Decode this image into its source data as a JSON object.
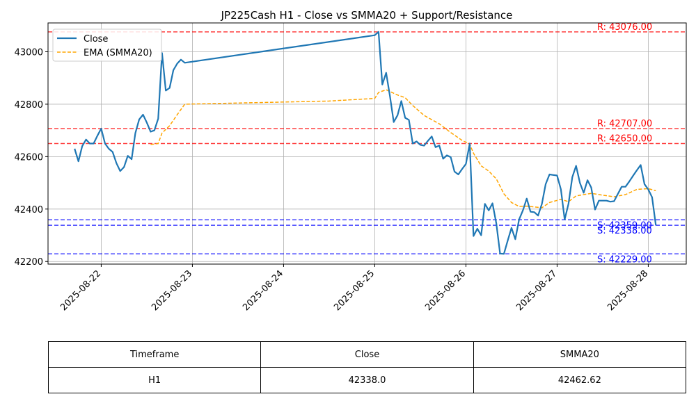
{
  "chart_data": {
    "type": "line",
    "title": "JP225Cash H1 - Close vs SMMA20 + Support/Resistance",
    "xlabel": "",
    "ylabel": "",
    "ylim": [
      42190,
      43110
    ],
    "xlim": [
      "2025-08-21 10:00",
      "2025-08-28 10:00"
    ],
    "x_ticks": [
      "2025-08-22",
      "2025-08-23",
      "2025-08-24",
      "2025-08-25",
      "2025-08-26",
      "2025-08-27",
      "2025-08-28"
    ],
    "y_ticks": [
      42200,
      42400,
      42600,
      42800,
      43000
    ],
    "grid": true,
    "legend_position": "top-left",
    "series": [
      {
        "name": "Close",
        "color": "#1f77b4",
        "style": "solid",
        "points": [
          [
            "2025-08-21 17:00",
            42630
          ],
          [
            "2025-08-21 18:00",
            42582
          ],
          [
            "2025-08-21 19:00",
            42640
          ],
          [
            "2025-08-21 20:00",
            42665
          ],
          [
            "2025-08-21 21:00",
            42650
          ],
          [
            "2025-08-21 22:00",
            42650
          ],
          [
            "2025-08-21 23:00",
            42680
          ],
          [
            "2025-08-22 00:00",
            42707
          ],
          [
            "2025-08-22 01:00",
            42650
          ],
          [
            "2025-08-22 02:00",
            42630
          ],
          [
            "2025-08-22 03:00",
            42618
          ],
          [
            "2025-08-22 04:00",
            42575
          ],
          [
            "2025-08-22 05:00",
            42545
          ],
          [
            "2025-08-22 06:00",
            42560
          ],
          [
            "2025-08-22 07:00",
            42603
          ],
          [
            "2025-08-22 08:00",
            42590
          ],
          [
            "2025-08-22 09:00",
            42690
          ],
          [
            "2025-08-22 10:00",
            42742
          ],
          [
            "2025-08-22 11:00",
            42760
          ],
          [
            "2025-08-22 12:00",
            42730
          ],
          [
            "2025-08-22 13:00",
            42695
          ],
          [
            "2025-08-22 14:00",
            42700
          ],
          [
            "2025-08-22 15:00",
            42745
          ],
          [
            "2025-08-22 16:00",
            42995
          ],
          [
            "2025-08-22 17:00",
            42852
          ],
          [
            "2025-08-22 18:00",
            42862
          ],
          [
            "2025-08-22 19:00",
            42930
          ],
          [
            "2025-08-22 20:00",
            42955
          ],
          [
            "2025-08-22 21:00",
            42970
          ],
          [
            "2025-08-22 22:00",
            42958
          ],
          [
            "2025-08-25 00:00",
            43063
          ],
          [
            "2025-08-25 01:00",
            43076
          ],
          [
            "2025-08-25 02:00",
            42875
          ],
          [
            "2025-08-25 03:00",
            42920
          ],
          [
            "2025-08-25 04:00",
            42830
          ],
          [
            "2025-08-25 05:00",
            42732
          ],
          [
            "2025-08-25 06:00",
            42758
          ],
          [
            "2025-08-25 07:00",
            42812
          ],
          [
            "2025-08-25 08:00",
            42748
          ],
          [
            "2025-08-25 09:00",
            42740
          ],
          [
            "2025-08-25 10:00",
            42650
          ],
          [
            "2025-08-25 11:00",
            42658
          ],
          [
            "2025-08-25 12:00",
            42645
          ],
          [
            "2025-08-25 13:00",
            42642
          ],
          [
            "2025-08-25 14:00",
            42660
          ],
          [
            "2025-08-25 15:00",
            42677
          ],
          [
            "2025-08-25 16:00",
            42636
          ],
          [
            "2025-08-25 17:00",
            42642
          ],
          [
            "2025-08-25 18:00",
            42592
          ],
          [
            "2025-08-25 19:00",
            42605
          ],
          [
            "2025-08-25 20:00",
            42598
          ],
          [
            "2025-08-25 21:00",
            42543
          ],
          [
            "2025-08-25 22:00",
            42532
          ],
          [
            "2025-08-25 23:00",
            42553
          ],
          [
            "2025-08-26 00:00",
            42572
          ],
          [
            "2025-08-26 01:00",
            42650
          ],
          [
            "2025-08-26 02:00",
            42297
          ],
          [
            "2025-08-26 03:00",
            42325
          ],
          [
            "2025-08-26 04:00",
            42300
          ],
          [
            "2025-08-26 05:00",
            42420
          ],
          [
            "2025-08-26 06:00",
            42395
          ],
          [
            "2025-08-26 07:00",
            42422
          ],
          [
            "2025-08-26 08:00",
            42345
          ],
          [
            "2025-08-26 09:00",
            42230
          ],
          [
            "2025-08-26 10:00",
            42229
          ],
          [
            "2025-08-26 11:00",
            42280
          ],
          [
            "2025-08-26 12:00",
            42328
          ],
          [
            "2025-08-26 13:00",
            42285
          ],
          [
            "2025-08-26 14:00",
            42360
          ],
          [
            "2025-08-26 15:00",
            42395
          ],
          [
            "2025-08-26 16:00",
            42440
          ],
          [
            "2025-08-26 17:00",
            42390
          ],
          [
            "2025-08-26 18:00",
            42388
          ],
          [
            "2025-08-26 19:00",
            42375
          ],
          [
            "2025-08-26 20:00",
            42420
          ],
          [
            "2025-08-26 21:00",
            42495
          ],
          [
            "2025-08-26 22:00",
            42532
          ],
          [
            "2025-08-26 23:00",
            42530
          ],
          [
            "2025-08-27 00:00",
            42528
          ],
          [
            "2025-08-27 01:00",
            42475
          ],
          [
            "2025-08-27 02:00",
            42360
          ],
          [
            "2025-08-27 03:00",
            42420
          ],
          [
            "2025-08-27 04:00",
            42522
          ],
          [
            "2025-08-27 05:00",
            42565
          ],
          [
            "2025-08-27 06:00",
            42500
          ],
          [
            "2025-08-27 07:00",
            42462
          ],
          [
            "2025-08-27 08:00",
            42510
          ],
          [
            "2025-08-27 09:00",
            42482
          ],
          [
            "2025-08-27 10:00",
            42398
          ],
          [
            "2025-08-27 11:00",
            42432
          ],
          [
            "2025-08-27 12:00",
            42432
          ],
          [
            "2025-08-27 13:00",
            42432
          ],
          [
            "2025-08-27 14:00",
            42428
          ],
          [
            "2025-08-27 15:00",
            42430
          ],
          [
            "2025-08-27 16:00",
            42458
          ],
          [
            "2025-08-27 17:00",
            42485
          ],
          [
            "2025-08-27 18:00",
            42485
          ],
          [
            "2025-08-27 19:00",
            42505
          ],
          [
            "2025-08-27 20:00",
            42527
          ],
          [
            "2025-08-27 21:00",
            42548
          ],
          [
            "2025-08-27 22:00",
            42568
          ],
          [
            "2025-08-27 23:00",
            42495
          ],
          [
            "2025-08-28 00:00",
            42475
          ],
          [
            "2025-08-28 01:00",
            42445
          ],
          [
            "2025-08-28 02:00",
            42338
          ]
        ]
      },
      {
        "name": "EMA (SMMA20)",
        "color": "#ffa500",
        "style": "dashed",
        "points": [
          [
            "2025-08-22 13:00",
            42646
          ],
          [
            "2025-08-22 15:00",
            42650
          ],
          [
            "2025-08-22 16:00",
            42690
          ],
          [
            "2025-08-22 18:00",
            42718
          ],
          [
            "2025-08-22 20:00",
            42760
          ],
          [
            "2025-08-22 22:00",
            42800
          ],
          [
            "2025-08-24 12:00",
            42812
          ],
          [
            "2025-08-25 00:00",
            42822
          ],
          [
            "2025-08-25 01:00",
            42845
          ],
          [
            "2025-08-25 03:00",
            42855
          ],
          [
            "2025-08-25 06:00",
            42835
          ],
          [
            "2025-08-25 08:00",
            42825
          ],
          [
            "2025-08-25 10:00",
            42795
          ],
          [
            "2025-08-25 13:00",
            42757
          ],
          [
            "2025-08-25 17:00",
            42725
          ],
          [
            "2025-08-25 20:00",
            42692
          ],
          [
            "2025-08-25 23:00",
            42662
          ],
          [
            "2025-08-26 01:00",
            42648
          ],
          [
            "2025-08-26 02:00",
            42613
          ],
          [
            "2025-08-26 04:00",
            42565
          ],
          [
            "2025-08-26 06:00",
            42545
          ],
          [
            "2025-08-26 08:00",
            42515
          ],
          [
            "2025-08-26 10:00",
            42458
          ],
          [
            "2025-08-26 12:00",
            42425
          ],
          [
            "2025-08-26 14:00",
            42410
          ],
          [
            "2025-08-26 16:00",
            42411
          ],
          [
            "2025-08-26 18:00",
            42408
          ],
          [
            "2025-08-26 20:00",
            42405
          ],
          [
            "2025-08-26 22:00",
            42425
          ],
          [
            "2025-08-27 01:00",
            42437
          ],
          [
            "2025-08-27 03:00",
            42428
          ],
          [
            "2025-08-27 05:00",
            42450
          ],
          [
            "2025-08-27 09:00",
            42460
          ],
          [
            "2025-08-27 12:00",
            42453
          ],
          [
            "2025-08-27 15:00",
            42447
          ],
          [
            "2025-08-27 18:00",
            42455
          ],
          [
            "2025-08-27 21:00",
            42475
          ],
          [
            "2025-08-28 00:00",
            42478
          ],
          [
            "2025-08-28 02:00",
            42470
          ]
        ]
      }
    ],
    "levels": [
      {
        "kind": "resistance",
        "value": 43076,
        "label": "R: 43076.00",
        "color": "#ff0000"
      },
      {
        "kind": "resistance",
        "value": 42707,
        "label": "R: 42707.00",
        "color": "#ff0000"
      },
      {
        "kind": "resistance",
        "value": 42650,
        "label": "R: 42650.00",
        "color": "#ff0000"
      },
      {
        "kind": "support",
        "value": 42359,
        "label": "S: 42359.00",
        "color": "#0000ff"
      },
      {
        "kind": "support",
        "value": 42338,
        "label": "S: 42338.00",
        "color": "#0000ff"
      },
      {
        "kind": "support",
        "value": 42229,
        "label": "S: 42229.00",
        "color": "#0000ff"
      }
    ]
  },
  "table": {
    "headers": [
      "Timeframe",
      "Close",
      "SMMA20"
    ],
    "rows": [
      [
        "H1",
        "42338.0",
        "42462.62"
      ]
    ]
  }
}
